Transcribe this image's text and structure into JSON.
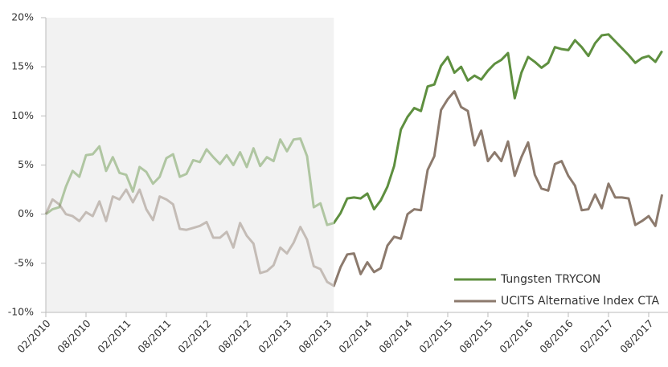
{
  "chart_data": {
    "type": "line",
    "categories": [
      "02/2010",
      null,
      null,
      null,
      null,
      null,
      "08/2010",
      null,
      null,
      null,
      null,
      null,
      "02/2011",
      null,
      null,
      null,
      null,
      null,
      "08/2011",
      null,
      null,
      null,
      null,
      null,
      "02/2012",
      null,
      null,
      null,
      null,
      null,
      "08/2012",
      null,
      null,
      null,
      null,
      null,
      "02/2013",
      null,
      null,
      null,
      null,
      null,
      "08/2013",
      null,
      null,
      null,
      null,
      null,
      "02/2014",
      null,
      null,
      null,
      null,
      null,
      "08/2014",
      null,
      null,
      null,
      null,
      null,
      "02/2015",
      null,
      null,
      null,
      null,
      null,
      "08/2015",
      null,
      null,
      null,
      null,
      null,
      "02/2016",
      null,
      null,
      null,
      null,
      null,
      "08/2016",
      null,
      null,
      null,
      null,
      null,
      "02/2017",
      null,
      null,
      null,
      null,
      null,
      "08/2017",
      null,
      null
    ],
    "series": [
      {
        "name": "Tungsten TRYCON",
        "color": "#5e8f3f",
        "values": [
          0,
          0.5,
          0.7,
          2.8,
          4.4,
          3.8,
          6.0,
          6.1,
          6.9,
          4.4,
          5.8,
          4.2,
          4.0,
          2.3,
          4.8,
          4.3,
          3.1,
          3.8,
          5.7,
          6.1,
          3.8,
          4.1,
          5.5,
          5.3,
          6.6,
          5.8,
          5.1,
          6.0,
          5.0,
          6.3,
          4.8,
          6.7,
          4.9,
          5.8,
          5.4,
          7.6,
          6.4,
          7.6,
          7.7,
          5.9,
          0.7,
          1.1,
          -1.1,
          -0.9,
          0.1,
          1.6,
          1.7,
          1.6,
          2.1,
          0.5,
          1.4,
          2.8,
          4.9,
          8.6,
          9.9,
          10.8,
          10.5,
          13.0,
          13.2,
          15.1,
          16.0,
          14.4,
          15.0,
          13.6,
          14.1,
          13.7,
          14.6,
          15.3,
          15.7,
          16.4,
          11.8,
          14.4,
          16.0,
          15.5,
          14.9,
          15.4,
          17.0,
          16.8,
          16.7,
          17.7,
          17.0,
          16.1,
          17.4,
          18.2,
          18.3,
          17.6,
          16.9,
          16.2,
          15.4,
          15.9,
          16.1,
          15.5,
          16.6
        ]
      },
      {
        "name": "UCITS Alternative Index CTA",
        "color": "#8c7a6d",
        "values": [
          0,
          1.5,
          1.0,
          0,
          -0.2,
          -0.7,
          0.2,
          -0.2,
          1.3,
          -0.7,
          1.8,
          1.5,
          2.5,
          1.2,
          2.5,
          0.5,
          -0.6,
          1.8,
          1.5,
          1.0,
          -1.5,
          -1.6,
          -1.4,
          -1.2,
          -0.8,
          -2.4,
          -2.4,
          -1.8,
          -3.4,
          -0.9,
          -2.2,
          -3.0,
          -6.0,
          -5.8,
          -5.2,
          -3.4,
          -4.0,
          -2.9,
          -1.3,
          -2.6,
          -5.3,
          -5.6,
          -6.9,
          -7.3,
          -5.4,
          -4.1,
          -4.0,
          -6.1,
          -4.9,
          -5.9,
          -5.5,
          -3.2,
          -2.3,
          -2.5,
          0.0,
          0.5,
          0.4,
          4.5,
          5.9,
          10.6,
          11.7,
          12.5,
          10.9,
          10.5,
          7.0,
          8.5,
          5.4,
          6.3,
          5.4,
          7.4,
          3.9,
          5.8,
          7.3,
          4.0,
          2.6,
          2.4,
          5.1,
          5.4,
          3.9,
          2.9,
          0.4,
          0.5,
          2.0,
          0.6,
          3.1,
          1.7,
          1.7,
          1.6,
          -1.1,
          -0.7,
          -0.2,
          -1.2,
          2.0
        ]
      }
    ],
    "ylim": [
      -10,
      20
    ],
    "yticks": [
      {
        "value": -10,
        "label": "-10%"
      },
      {
        "value": -5,
        "label": "-5%"
      },
      {
        "value": 0,
        "label": "0%"
      },
      {
        "value": 5,
        "label": "5%"
      },
      {
        "value": 10,
        "label": "10%"
      },
      {
        "value": 15,
        "label": "15%"
      },
      {
        "value": 20,
        "label": "20%"
      }
    ],
    "grid": false,
    "highlight_range": [
      0,
      43
    ],
    "highlight_color": "#f2f2f2",
    "legend": "lower right"
  }
}
